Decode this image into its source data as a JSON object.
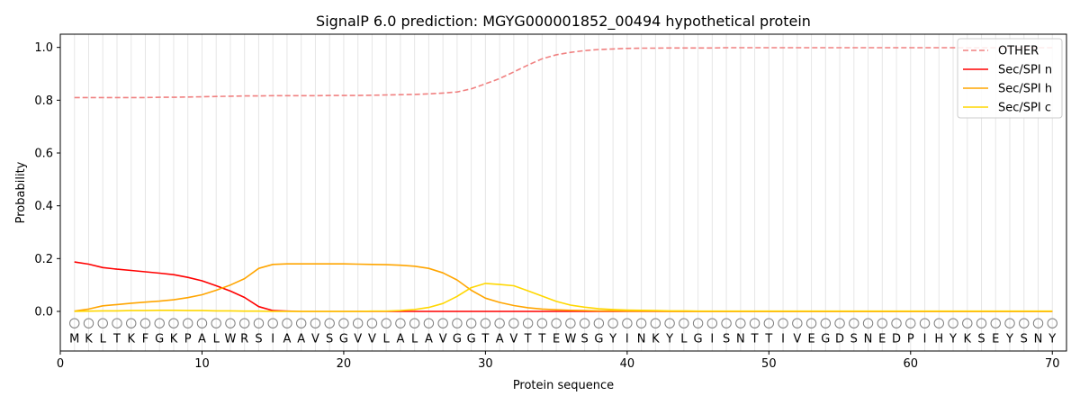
{
  "chart_data": {
    "type": "line",
    "title": "SignalP 6.0 prediction: MGYG000001852_00494 hypothetical protein",
    "xlabel": "Protein sequence",
    "ylabel": "Probability",
    "xlim": [
      0,
      71
    ],
    "ylim": [
      -0.15,
      1.05
    ],
    "x_ticks": [
      "0",
      "10",
      "20",
      "30",
      "40",
      "50",
      "60",
      "70"
    ],
    "y_ticks": [
      "0.0",
      "0.2",
      "0.4",
      "0.6",
      "0.8",
      "1.0"
    ],
    "grid": "vertical lines at each residue",
    "legend_position": "top-right",
    "sequence": [
      "M",
      "K",
      "L",
      "T",
      "K",
      "F",
      "G",
      "K",
      "P",
      "A",
      "L",
      "W",
      "R",
      "S",
      "I",
      "A",
      "A",
      "V",
      "S",
      "G",
      "V",
      "V",
      "L",
      "A",
      "L",
      "A",
      "V",
      "G",
      "G",
      "T",
      "A",
      "V",
      "T",
      "T",
      "E",
      "W",
      "S",
      "G",
      "Y",
      "I",
      "N",
      "K",
      "Y",
      "L",
      "G",
      "I",
      "S",
      "N",
      "T",
      "T",
      "I",
      "V",
      "E",
      "G",
      "D",
      "S",
      "N",
      "E",
      "D",
      "P",
      "I",
      "H",
      "Y",
      "K",
      "S",
      "E",
      "Y",
      "S",
      "N",
      "Y"
    ],
    "region_marker": "O",
    "colors": {
      "other": "#f08080",
      "n": "#ff0000",
      "h": "#ffa500",
      "c": "#ffd700",
      "marker": "#808080",
      "grid": "#e6e6e6"
    },
    "series": [
      {
        "name": "OTHER",
        "style": "dashed",
        "values": [
          0.81,
          0.81,
          0.81,
          0.81,
          0.81,
          0.81,
          0.811,
          0.811,
          0.812,
          0.813,
          0.814,
          0.815,
          0.816,
          0.816,
          0.817,
          0.817,
          0.817,
          0.817,
          0.818,
          0.818,
          0.818,
          0.819,
          0.82,
          0.821,
          0.822,
          0.824,
          0.827,
          0.831,
          0.843,
          0.862,
          0.882,
          0.907,
          0.933,
          0.957,
          0.972,
          0.981,
          0.988,
          0.992,
          0.994,
          0.996,
          0.997,
          0.997,
          0.998,
          0.998,
          0.998,
          0.998,
          0.999,
          0.999,
          0.999,
          0.999,
          0.999,
          0.999,
          0.999,
          0.999,
          0.999,
          0.999,
          0.999,
          0.999,
          0.999,
          0.999,
          0.999,
          0.999,
          0.999,
          0.999,
          0.999,
          0.999,
          0.999,
          0.999,
          0.999,
          0.999
        ]
      },
      {
        "name": "Sec/SPI n",
        "style": "solid",
        "values": [
          0.187,
          0.179,
          0.166,
          0.16,
          0.155,
          0.15,
          0.145,
          0.139,
          0.129,
          0.116,
          0.097,
          0.077,
          0.053,
          0.018,
          0.003,
          0.001,
          0.0,
          0.0,
          0.0,
          0.0,
          0.0,
          0.0,
          0.0,
          0.0,
          0.0,
          0.0,
          0.0,
          0.0,
          0.0,
          0.0,
          0.0,
          0.0,
          0.0,
          0.0,
          0.0,
          0.0,
          0.0,
          0.0,
          0.0,
          0.0,
          0.0,
          0.0,
          0.0,
          0.0,
          0.0,
          0.0,
          0.0,
          0.0,
          0.0,
          0.0,
          0.0,
          0.0,
          0.0,
          0.0,
          0.0,
          0.0,
          0.0,
          0.0,
          0.0,
          0.0,
          0.0,
          0.0,
          0.0,
          0.0,
          0.0,
          0.0,
          0.0,
          0.0,
          0.0,
          0.0
        ]
      },
      {
        "name": "Sec/SPI h",
        "style": "solid",
        "values": [
          0.001,
          0.009,
          0.021,
          0.026,
          0.031,
          0.035,
          0.039,
          0.044,
          0.052,
          0.063,
          0.08,
          0.1,
          0.124,
          0.163,
          0.178,
          0.18,
          0.18,
          0.18,
          0.18,
          0.18,
          0.179,
          0.178,
          0.177,
          0.175,
          0.171,
          0.163,
          0.146,
          0.119,
          0.08,
          0.05,
          0.034,
          0.022,
          0.014,
          0.009,
          0.006,
          0.004,
          0.003,
          0.002,
          0.002,
          0.001,
          0.001,
          0.001,
          0.0,
          0.0,
          0.0,
          0.0,
          0.0,
          0.0,
          0.0,
          0.0,
          0.0,
          0.0,
          0.0,
          0.0,
          0.0,
          0.0,
          0.0,
          0.0,
          0.0,
          0.0,
          0.0,
          0.0,
          0.0,
          0.0,
          0.0,
          0.0,
          0.0,
          0.0,
          0.0,
          0.0
        ]
      },
      {
        "name": "Sec/SPI c",
        "style": "solid",
        "values": [
          0.0,
          0.001,
          0.002,
          0.002,
          0.003,
          0.003,
          0.004,
          0.004,
          0.003,
          0.003,
          0.002,
          0.002,
          0.001,
          0.001,
          0.0,
          0.0,
          0.0,
          0.0,
          0.0,
          0.0,
          0.0,
          0.001,
          0.001,
          0.003,
          0.007,
          0.015,
          0.03,
          0.057,
          0.09,
          0.106,
          0.102,
          0.097,
          0.078,
          0.058,
          0.038,
          0.024,
          0.016,
          0.01,
          0.007,
          0.005,
          0.004,
          0.003,
          0.002,
          0.002,
          0.001,
          0.001,
          0.001,
          0.001,
          0.001,
          0.001,
          0.001,
          0.001,
          0.001,
          0.001,
          0.001,
          0.001,
          0.001,
          0.001,
          0.001,
          0.001,
          0.001,
          0.001,
          0.001,
          0.001,
          0.001,
          0.001,
          0.001,
          0.001,
          0.001,
          0.001
        ]
      }
    ]
  }
}
